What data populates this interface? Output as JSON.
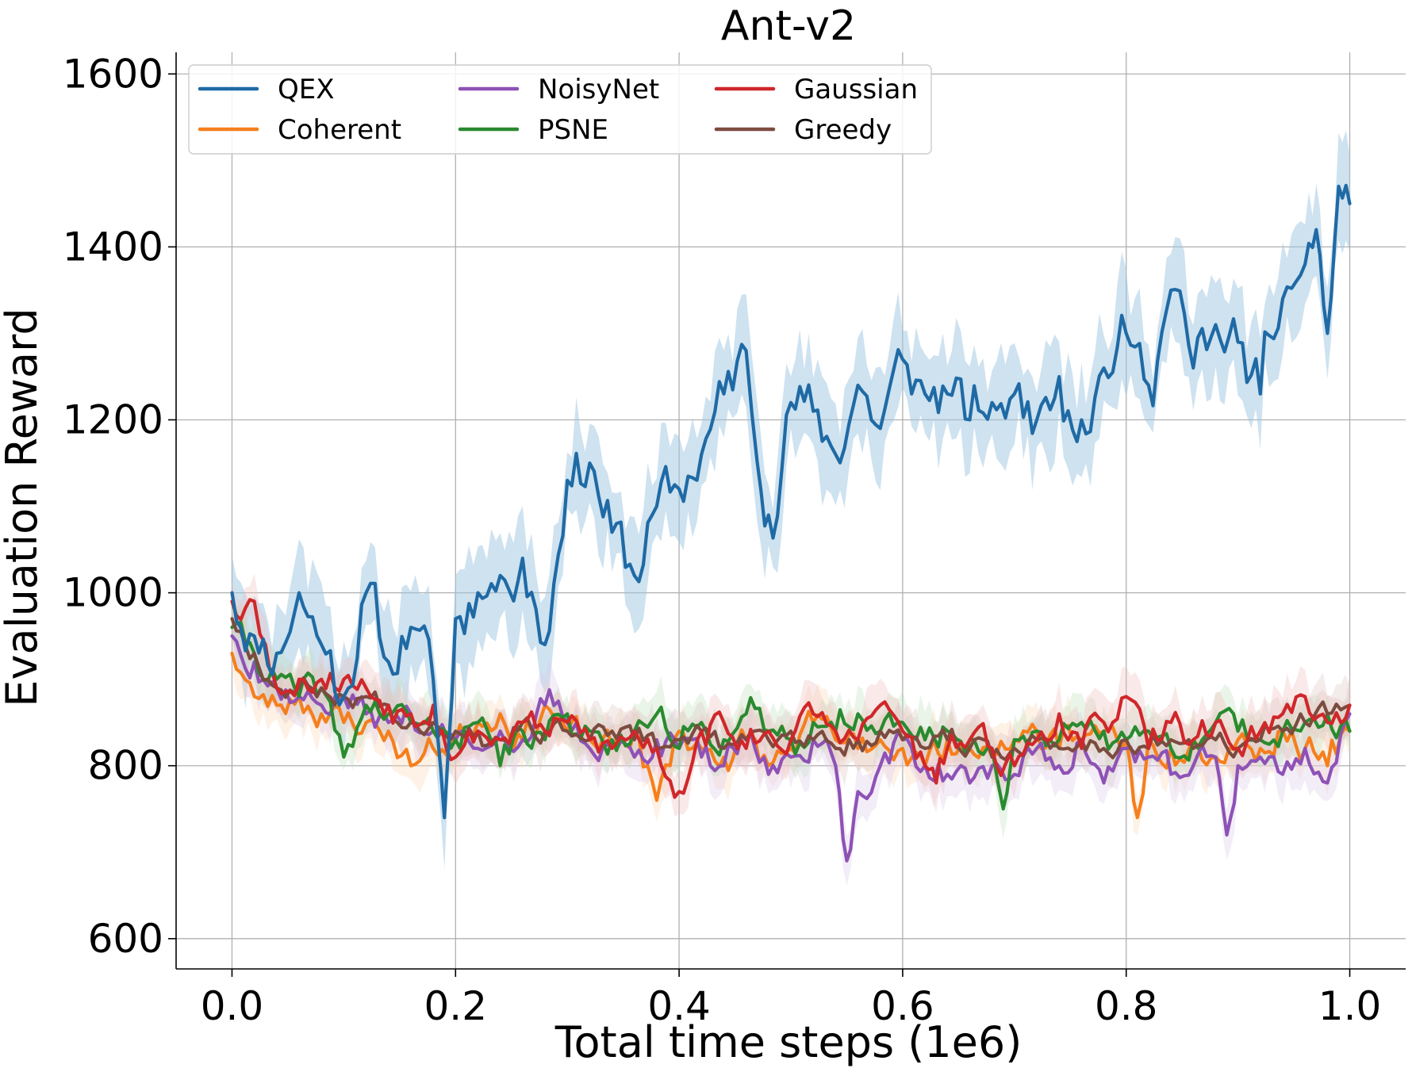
{
  "chart_data": {
    "type": "line",
    "title": "Ant-v2",
    "xlabel": "Total time steps (1e6)",
    "ylabel": "Evaluation Reward",
    "xlim": [
      -0.05,
      1.05
    ],
    "ylim": [
      565,
      1625
    ],
    "xticks": [
      0.0,
      0.2,
      0.4,
      0.6,
      0.8,
      1.0
    ],
    "xtick_labels": [
      "0.0",
      "0.2",
      "0.4",
      "0.6",
      "0.8",
      "1.0"
    ],
    "yticks": [
      600,
      800,
      1000,
      1200,
      1400,
      1600
    ],
    "ytick_labels": [
      "600",
      "800",
      "1000",
      "1200",
      "1400",
      "1600"
    ],
    "grid": true,
    "legend": {
      "placement": "top-left",
      "columns": 3
    },
    "series": [
      {
        "name": "QEX",
        "color": "#1f6aa5",
        "band_color": "#9ec5e2",
        "band_halfwidth": 50,
        "x": [
          0.0,
          0.02,
          0.04,
          0.06,
          0.08,
          0.1,
          0.12,
          0.14,
          0.16,
          0.18,
          0.19,
          0.2,
          0.22,
          0.24,
          0.26,
          0.28,
          0.3,
          0.32,
          0.34,
          0.36,
          0.38,
          0.4,
          0.42,
          0.44,
          0.46,
          0.47,
          0.48,
          0.5,
          0.52,
          0.54,
          0.56,
          0.58,
          0.6,
          0.62,
          0.64,
          0.66,
          0.68,
          0.7,
          0.72,
          0.74,
          0.76,
          0.78,
          0.8,
          0.82,
          0.84,
          0.86,
          0.88,
          0.9,
          0.92,
          0.94,
          0.96,
          0.97,
          0.98,
          0.99,
          1.0
        ],
        "y": [
          1000,
          950,
          930,
          1000,
          940,
          880,
          1000,
          920,
          960,
          900,
          740,
          970,
          1000,
          1020,
          1040,
          940,
          1130,
          1150,
          1070,
          1020,
          1100,
          1120,
          1160,
          1230,
          1280,
          1150,
          1090,
          1220,
          1210,
          1160,
          1240,
          1190,
          1270,
          1230,
          1230,
          1200,
          1220,
          1230,
          1200,
          1250,
          1200,
          1260,
          1300,
          1240,
          1350,
          1260,
          1310,
          1290,
          1230,
          1340,
          1380,
          1420,
          1300,
          1470,
          1450
        ]
      },
      {
        "name": "Coherent",
        "color": "#f57f1d",
        "band_color": "#fcd9b8",
        "band_halfwidth": 25,
        "x": [
          0.0,
          0.02,
          0.04,
          0.06,
          0.08,
          0.1,
          0.12,
          0.14,
          0.16,
          0.18,
          0.2,
          0.22,
          0.24,
          0.26,
          0.28,
          0.3,
          0.32,
          0.34,
          0.36,
          0.38,
          0.4,
          0.42,
          0.44,
          0.46,
          0.48,
          0.5,
          0.52,
          0.54,
          0.56,
          0.58,
          0.6,
          0.62,
          0.64,
          0.66,
          0.68,
          0.7,
          0.72,
          0.74,
          0.76,
          0.78,
          0.8,
          0.81,
          0.82,
          0.84,
          0.86,
          0.88,
          0.9,
          0.92,
          0.94,
          0.96,
          0.98,
          1.0
        ],
        "y": [
          930,
          880,
          870,
          880,
          860,
          850,
          850,
          840,
          800,
          820,
          830,
          850,
          860,
          830,
          870,
          840,
          830,
          820,
          840,
          760,
          840,
          820,
          810,
          830,
          800,
          820,
          850,
          830,
          820,
          830,
          820,
          800,
          830,
          820,
          810,
          830,
          840,
          820,
          830,
          840,
          830,
          740,
          830,
          820,
          830,
          810,
          830,
          820,
          840,
          820,
          800,
          840
        ]
      },
      {
        "name": "NoisyNet",
        "color": "#8e52b6",
        "band_color": "#dccbea",
        "band_halfwidth": 25,
        "x": [
          0.0,
          0.02,
          0.04,
          0.06,
          0.08,
          0.1,
          0.12,
          0.14,
          0.16,
          0.18,
          0.2,
          0.22,
          0.24,
          0.26,
          0.28,
          0.3,
          0.32,
          0.34,
          0.36,
          0.38,
          0.4,
          0.42,
          0.44,
          0.46,
          0.48,
          0.5,
          0.52,
          0.54,
          0.55,
          0.56,
          0.58,
          0.6,
          0.62,
          0.64,
          0.66,
          0.68,
          0.7,
          0.72,
          0.74,
          0.76,
          0.78,
          0.8,
          0.82,
          0.84,
          0.86,
          0.88,
          0.89,
          0.9,
          0.92,
          0.94,
          0.96,
          0.98,
          1.0
        ],
        "y": [
          950,
          920,
          890,
          880,
          870,
          880,
          860,
          850,
          860,
          840,
          830,
          820,
          840,
          830,
          870,
          850,
          820,
          830,
          810,
          830,
          820,
          810,
          800,
          830,
          790,
          810,
          830,
          800,
          690,
          770,
          800,
          830,
          800,
          790,
          780,
          800,
          790,
          820,
          800,
          830,
          780,
          820,
          810,
          790,
          800,
          810,
          720,
          800,
          810,
          790,
          820,
          780,
          860
        ]
      },
      {
        "name": "PSNE",
        "color": "#2a8a2f",
        "band_color": "#c2e3c0",
        "band_halfwidth": 25,
        "x": [
          0.0,
          0.02,
          0.04,
          0.06,
          0.08,
          0.1,
          0.12,
          0.14,
          0.16,
          0.18,
          0.2,
          0.22,
          0.24,
          0.26,
          0.28,
          0.3,
          0.32,
          0.34,
          0.36,
          0.38,
          0.4,
          0.42,
          0.44,
          0.46,
          0.48,
          0.5,
          0.52,
          0.54,
          0.56,
          0.58,
          0.6,
          0.62,
          0.64,
          0.66,
          0.68,
          0.69,
          0.7,
          0.72,
          0.74,
          0.76,
          0.78,
          0.8,
          0.82,
          0.84,
          0.86,
          0.88,
          0.9,
          0.92,
          0.94,
          0.96,
          0.98,
          1.0
        ],
        "y": [
          960,
          930,
          900,
          880,
          890,
          810,
          870,
          860,
          850,
          840,
          830,
          850,
          800,
          840,
          830,
          860,
          840,
          830,
          840,
          860,
          820,
          850,
          830,
          860,
          840,
          830,
          850,
          840,
          860,
          840,
          850,
          830,
          840,
          830,
          820,
          750,
          830,
          840,
          830,
          850,
          840,
          830,
          840,
          820,
          830,
          850,
          840,
          830,
          840,
          850,
          860,
          840
        ]
      },
      {
        "name": "Gaussian",
        "color": "#d0272a",
        "band_color": "#f2c0c0",
        "band_halfwidth": 25,
        "x": [
          0.0,
          0.02,
          0.03,
          0.04,
          0.06,
          0.08,
          0.1,
          0.12,
          0.14,
          0.16,
          0.18,
          0.2,
          0.22,
          0.24,
          0.26,
          0.28,
          0.3,
          0.32,
          0.34,
          0.36,
          0.38,
          0.4,
          0.42,
          0.44,
          0.46,
          0.48,
          0.5,
          0.52,
          0.54,
          0.56,
          0.58,
          0.6,
          0.62,
          0.63,
          0.64,
          0.66,
          0.68,
          0.7,
          0.72,
          0.74,
          0.76,
          0.78,
          0.8,
          0.82,
          0.84,
          0.86,
          0.88,
          0.9,
          0.92,
          0.94,
          0.96,
          0.98,
          1.0
        ],
        "y": [
          990,
          990,
          940,
          890,
          900,
          900,
          900,
          890,
          870,
          860,
          870,
          810,
          840,
          830,
          850,
          840,
          850,
          830,
          820,
          840,
          820,
          770,
          840,
          850,
          820,
          840,
          830,
          860,
          840,
          830,
          870,
          840,
          800,
          780,
          820,
          830,
          820,
          800,
          830,
          860,
          820,
          850,
          880,
          820,
          850,
          830,
          850,
          820,
          840,
          860,
          880,
          850,
          870
        ]
      },
      {
        "name": "Greedy",
        "color": "#7c4b3f",
        "band_color": "#dcc8c2",
        "band_halfwidth": 25,
        "x": [
          0.0,
          0.02,
          0.04,
          0.06,
          0.08,
          0.1,
          0.12,
          0.14,
          0.16,
          0.18,
          0.2,
          0.22,
          0.24,
          0.26,
          0.28,
          0.3,
          0.32,
          0.34,
          0.36,
          0.38,
          0.4,
          0.42,
          0.44,
          0.46,
          0.48,
          0.5,
          0.52,
          0.54,
          0.56,
          0.58,
          0.6,
          0.62,
          0.64,
          0.66,
          0.68,
          0.7,
          0.72,
          0.74,
          0.76,
          0.78,
          0.8,
          0.82,
          0.84,
          0.86,
          0.88,
          0.9,
          0.92,
          0.94,
          0.96,
          0.98,
          1.0
        ],
        "y": [
          970,
          930,
          890,
          890,
          890,
          880,
          880,
          870,
          850,
          850,
          840,
          840,
          830,
          850,
          840,
          840,
          830,
          840,
          830,
          820,
          830,
          840,
          820,
          830,
          830,
          840,
          830,
          820,
          830,
          840,
          830,
          820,
          830,
          820,
          810,
          820,
          830,
          820,
          830,
          820,
          830,
          820,
          830,
          820,
          830,
          820,
          830,
          840,
          850,
          860,
          870
        ]
      }
    ]
  }
}
